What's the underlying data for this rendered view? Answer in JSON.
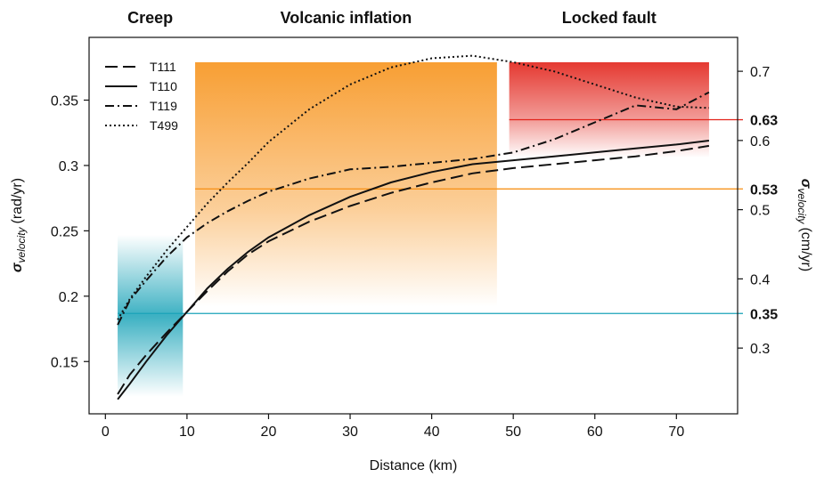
{
  "chart_data": {
    "type": "line",
    "xlabel": "Distance (km)",
    "ylabel": {
      "symbol": "σ",
      "subscript": "velocity",
      "unit": "(rad/yr)"
    },
    "y2label": {
      "symbol": "σ",
      "subscript": "velocity",
      "unit": "(cm/yr)"
    },
    "xlim": [
      -2,
      77.5
    ],
    "ylim": [
      0.11,
      0.398
    ],
    "y2lim": [
      0.205,
      0.749
    ],
    "xticks": [
      0,
      10,
      20,
      30,
      40,
      50,
      60,
      70
    ],
    "yticks": [
      0.15,
      0.2,
      0.25,
      0.3,
      0.35
    ],
    "y2ticks": [
      0.3,
      0.4,
      0.5,
      0.6,
      0.7
    ],
    "legend": "upper left",
    "x": [
      1.5,
      3,
      5,
      7.5,
      10,
      12.5,
      15,
      17.5,
      20,
      25,
      30,
      35,
      40,
      45,
      50,
      55,
      60,
      65,
      70,
      74
    ],
    "series": [
      {
        "name": "T111",
        "color": "#111111",
        "dash": "dashed",
        "values": [
          0.125,
          0.14,
          0.155,
          0.172,
          0.188,
          0.204,
          0.219,
          0.232,
          0.242,
          0.257,
          0.269,
          0.279,
          0.287,
          0.294,
          0.298,
          0.301,
          0.304,
          0.307,
          0.311,
          0.315
        ]
      },
      {
        "name": "T110",
        "color": "#111111",
        "dash": "solid",
        "values": [
          0.121,
          0.133,
          0.15,
          0.17,
          0.188,
          0.206,
          0.221,
          0.234,
          0.245,
          0.262,
          0.276,
          0.287,
          0.295,
          0.301,
          0.304,
          0.307,
          0.31,
          0.313,
          0.316,
          0.319
        ]
      },
      {
        "name": "T119",
        "color": "#111111",
        "dash": "dashdot",
        "values": [
          0.178,
          0.197,
          0.212,
          0.23,
          0.245,
          0.256,
          0.265,
          0.273,
          0.28,
          0.29,
          0.297,
          0.299,
          0.302,
          0.305,
          0.31,
          0.32,
          0.333,
          0.346,
          0.343,
          0.356
        ]
      },
      {
        "name": "T499",
        "color": "#111111",
        "dash": "dotted",
        "values": [
          0.182,
          0.198,
          0.215,
          0.235,
          0.253,
          0.271,
          0.287,
          0.302,
          0.318,
          0.343,
          0.362,
          0.375,
          0.382,
          0.384,
          0.379,
          0.372,
          0.362,
          0.352,
          0.345,
          0.344
        ]
      }
    ],
    "regions": [
      {
        "name": "Creep",
        "color": "#1aa3b8",
        "fade": "both",
        "x": [
          1.5,
          9.5
        ],
        "y": [
          0.123,
          0.247
        ]
      },
      {
        "name": "Volcanic inflation",
        "color": "#f7941d",
        "fade": "down",
        "x": [
          11,
          48
        ],
        "y": [
          0.192,
          0.379
        ]
      },
      {
        "name": "Locked fault",
        "color": "#e2231a",
        "fade": "down",
        "x": [
          49.5,
          74
        ],
        "y": [
          0.306,
          0.379
        ]
      }
    ],
    "reference_lines": [
      {
        "value": 0.35,
        "color": "#1aa3b8",
        "x_start": 1.5
      },
      {
        "value": 0.53,
        "color": "#f7941d",
        "x_start": 11
      },
      {
        "value": 0.63,
        "color": "#e2231a",
        "x_start": 49.5
      }
    ]
  }
}
